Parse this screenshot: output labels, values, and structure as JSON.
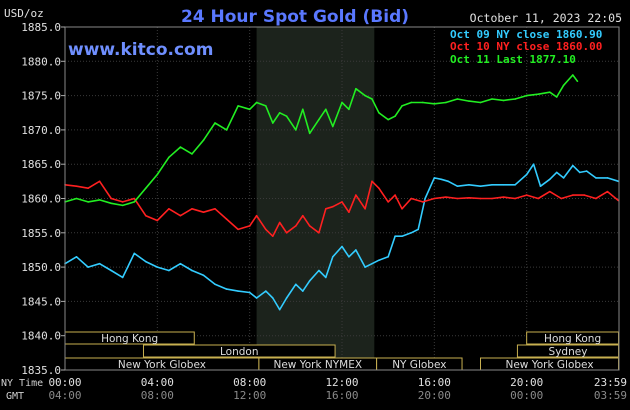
{
  "chart_data": {
    "type": "line",
    "title": "24 Hour Spot Gold (Bid)",
    "ylabel": "USD/oz",
    "watermark": "www.kitco.com",
    "date_label": "October 11, 2023 22:05",
    "ylim": [
      1835,
      1885
    ],
    "y_ticks": [
      "1885.0",
      "1880.0",
      "1875.0",
      "1870.0",
      "1865.0",
      "1860.0",
      "1855.0",
      "1850.0",
      "1845.0",
      "1840.0",
      "1835.0"
    ],
    "y_tick_values": [
      1885,
      1880,
      1875,
      1870,
      1865,
      1860,
      1855,
      1850,
      1845,
      1840,
      1835
    ],
    "x_range": [
      0,
      24
    ],
    "x_tick_hours": [
      0,
      4,
      8,
      12,
      16,
      20,
      24
    ],
    "ny_time_label": "NY Time",
    "gmt_label": "GMT",
    "ny_time_ticks": [
      "00:00",
      "04:00",
      "08:00",
      "12:00",
      "16:00",
      "20:00",
      "23:59"
    ],
    "gmt_ticks": [
      "04:00",
      "08:00",
      "12:00",
      "16:00",
      "20:00",
      "00:00",
      "03:59"
    ],
    "highlight_hours": [
      8.3,
      13.4
    ],
    "legend": {
      "placement": "top-right",
      "entries": [
        {
          "label": "Oct 09 NY close 1860.90",
          "color": "#33ccff"
        },
        {
          "label": "Oct 10 NY close 1860.00",
          "color": "#ff2020"
        },
        {
          "label": "Oct 11 Last 1877.10",
          "color": "#22ee22"
        }
      ]
    },
    "series": [
      {
        "name": "Oct 09",
        "color": "#33ccff",
        "x": [
          0,
          0.5,
          1.0,
          1.5,
          2.0,
          2.5,
          3.0,
          3.5,
          4.0,
          4.5,
          5.0,
          5.5,
          6.0,
          6.5,
          7.0,
          7.5,
          8.0,
          8.3,
          8.7,
          9.0,
          9.3,
          9.6,
          10.0,
          10.3,
          10.6,
          11.0,
          11.3,
          11.6,
          12.0,
          12.3,
          12.6,
          13.0,
          13.3,
          13.6,
          14.0,
          14.3,
          14.6,
          15.0,
          15.3,
          15.6,
          16.0,
          16.3,
          16.6,
          17.0,
          17.5,
          18.0,
          18.5,
          19.0,
          19.5,
          20.0,
          20.3,
          20.6,
          21.0,
          21.3,
          21.6,
          22.0,
          22.3,
          22.6,
          23.0,
          23.5,
          23.98
        ],
        "values": [
          1850.5,
          1851.5,
          1850.0,
          1850.5,
          1849.5,
          1848.5,
          1852.0,
          1850.8,
          1850.0,
          1849.5,
          1850.5,
          1849.5,
          1848.8,
          1847.5,
          1846.8,
          1846.5,
          1846.3,
          1845.5,
          1846.5,
          1845.5,
          1843.8,
          1845.5,
          1847.5,
          1846.5,
          1848.0,
          1849.5,
          1848.5,
          1851.5,
          1853.0,
          1851.5,
          1852.5,
          1850.0,
          1850.5,
          1851.0,
          1851.5,
          1854.5,
          1854.5,
          1855.0,
          1855.5,
          1860.0,
          1863.0,
          1862.8,
          1862.5,
          1861.8,
          1862.0,
          1861.8,
          1862.0,
          1862.0,
          1862.0,
          1863.5,
          1865.0,
          1861.8,
          1862.8,
          1863.8,
          1863.0,
          1864.8,
          1863.8,
          1864.0,
          1863.0,
          1863.0,
          1862.5
        ]
      },
      {
        "name": "Oct 10",
        "color": "#ff2020",
        "x": [
          0,
          0.5,
          1.0,
          1.5,
          2.0,
          2.5,
          3.0,
          3.5,
          4.0,
          4.5,
          5.0,
          5.5,
          6.0,
          6.5,
          7.0,
          7.5,
          8.0,
          8.3,
          8.7,
          9.0,
          9.3,
          9.6,
          10.0,
          10.3,
          10.6,
          11.0,
          11.3,
          11.6,
          12.0,
          12.3,
          12.6,
          13.0,
          13.3,
          13.6,
          14.0,
          14.3,
          14.6,
          15.0,
          15.5,
          16.0,
          16.5,
          17.0,
          17.5,
          18.0,
          18.5,
          19.0,
          19.5,
          20.0,
          20.5,
          21.0,
          21.5,
          22.0,
          22.5,
          23.0,
          23.5,
          23.98
        ],
        "values": [
          1862.0,
          1861.8,
          1861.5,
          1862.5,
          1860.0,
          1859.5,
          1860.0,
          1857.5,
          1856.8,
          1858.5,
          1857.5,
          1858.5,
          1858.0,
          1858.5,
          1857.0,
          1855.5,
          1856.0,
          1857.5,
          1855.5,
          1854.5,
          1856.5,
          1855.0,
          1856.0,
          1857.5,
          1856.0,
          1855.0,
          1858.5,
          1858.8,
          1859.5,
          1858.0,
          1860.5,
          1858.5,
          1862.5,
          1861.5,
          1859.5,
          1860.5,
          1858.5,
          1860.0,
          1859.5,
          1860.0,
          1860.2,
          1860.0,
          1860.1,
          1860.0,
          1860.0,
          1860.2,
          1860.0,
          1860.5,
          1860.0,
          1861.0,
          1860.0,
          1860.5,
          1860.5,
          1860.0,
          1861.0,
          1859.7
        ]
      },
      {
        "name": "Oct 11",
        "color": "#22ee22",
        "x": [
          0,
          0.5,
          1.0,
          1.5,
          2.0,
          2.5,
          3.0,
          3.5,
          4.0,
          4.5,
          5.0,
          5.5,
          6.0,
          6.5,
          7.0,
          7.5,
          8.0,
          8.3,
          8.7,
          9.0,
          9.3,
          9.6,
          10.0,
          10.3,
          10.6,
          11.0,
          11.3,
          11.6,
          12.0,
          12.3,
          12.6,
          13.0,
          13.3,
          13.6,
          14.0,
          14.3,
          14.6,
          15.0,
          15.5,
          16.0,
          16.5,
          17.0,
          17.5,
          18.0,
          18.5,
          19.0,
          19.5,
          20.0,
          20.5,
          21.0,
          21.3,
          21.6,
          22.0,
          22.2
        ],
        "values": [
          1859.5,
          1860.0,
          1859.5,
          1859.8,
          1859.3,
          1859.0,
          1859.5,
          1861.5,
          1863.5,
          1866.0,
          1867.5,
          1866.5,
          1868.5,
          1871.0,
          1870.0,
          1873.5,
          1873.0,
          1874.0,
          1873.5,
          1871.0,
          1872.5,
          1872.0,
          1870.0,
          1873.0,
          1869.5,
          1871.5,
          1873.0,
          1870.5,
          1874.0,
          1873.0,
          1876.0,
          1875.0,
          1874.5,
          1872.5,
          1871.5,
          1872.0,
          1873.5,
          1874.0,
          1874.0,
          1873.8,
          1874.0,
          1874.5,
          1874.2,
          1874.0,
          1874.5,
          1874.3,
          1874.5,
          1875.0,
          1875.2,
          1875.5,
          1874.8,
          1876.5,
          1878.0,
          1877.1
        ]
      }
    ],
    "sessions": [
      {
        "label": "Hong Kong",
        "start": 0,
        "end": 5.6,
        "row": 0
      },
      {
        "label": "Hong Kong",
        "start": 20.0,
        "end": 23.98,
        "row": 0
      },
      {
        "label": "London",
        "start": 3.4,
        "end": 11.7,
        "row": 1
      },
      {
        "label": "Sydney",
        "start": 19.6,
        "end": 23.98,
        "row": 1
      },
      {
        "label": "New York Globex",
        "start": 0,
        "end": 8.4,
        "row": 2
      },
      {
        "label": "New York NYMEX",
        "start": 8.4,
        "end": 13.5,
        "row": 2
      },
      {
        "label": "NY Globex",
        "start": 13.5,
        "end": 17.2,
        "row": 2
      },
      {
        "label": "New York Globex",
        "start": 18.0,
        "end": 23.98,
        "row": 2
      }
    ]
  }
}
